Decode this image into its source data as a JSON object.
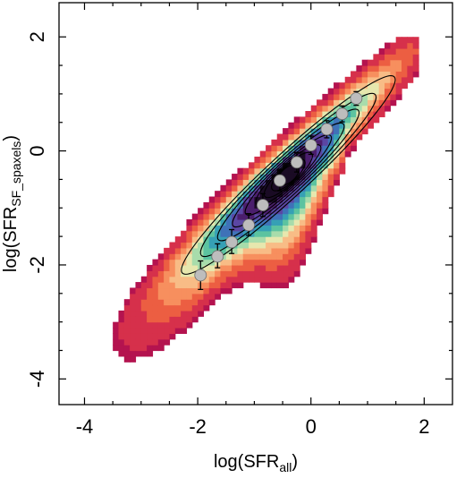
{
  "chart_data": {
    "type": "heatmap",
    "title": "",
    "xlabel": {
      "prefix": "log(SFR",
      "sub": "all",
      "suffix": ")"
    },
    "ylabel": {
      "prefix": "log(SFR",
      "sub": "SF_spaxels",
      "suffix": ")"
    },
    "xlim": [
      -4.45,
      2.5
    ],
    "ylim": [
      -4.45,
      2.6
    ],
    "x_ticks": [
      -4,
      -2,
      0,
      2
    ],
    "y_ticks": [
      -4,
      -2,
      0,
      2
    ],
    "x_tick_labels": [
      "-4",
      "-2",
      "0",
      "2"
    ],
    "y_tick_labels": [
      "-4",
      "-2",
      "0",
      "2"
    ],
    "grid": false,
    "colormap": [
      "#b4134f",
      "#d6304b",
      "#ec5e42",
      "#f78f5e",
      "#f8bc86",
      "#e7e7ae",
      "#a8dcab",
      "#5cc3a0",
      "#36a0b5",
      "#3f72b8",
      "#5b46a3",
      "#4b1e6d",
      "#1a0b24"
    ],
    "density_model": {
      "ridge_slope": 0.93,
      "ridge_intercept": 0.05,
      "core_x": [
        -1.0,
        0.0
      ],
      "core_peak_x": -0.55,
      "lower_tail_direction": -1
    },
    "contour_color": "#000000",
    "binned_medians": {
      "marker_color": "#bdbdbd",
      "errorbar_color": "#000000",
      "points": [
        {
          "x": -1.95,
          "y": -2.18,
          "err_low": 0.25,
          "err_high": 0.25
        },
        {
          "x": -1.65,
          "y": -1.85,
          "err_low": 0.2,
          "err_high": 0.22
        },
        {
          "x": -1.4,
          "y": -1.6,
          "err_low": 0.2,
          "err_high": 0.22
        },
        {
          "x": -1.1,
          "y": -1.3,
          "err_low": 0.18,
          "err_high": 0.2
        },
        {
          "x": -0.85,
          "y": -0.95,
          "err_low": 0.2,
          "err_high": 0.2
        },
        {
          "x": -0.55,
          "y": -0.52,
          "err_low": 0.18,
          "err_high": 0.18
        },
        {
          "x": -0.25,
          "y": -0.2,
          "err_low": 0.17,
          "err_high": 0.17
        },
        {
          "x": 0.0,
          "y": 0.1,
          "err_low": 0.16,
          "err_high": 0.16
        },
        {
          "x": 0.28,
          "y": 0.38,
          "err_low": 0.15,
          "err_high": 0.15
        },
        {
          "x": 0.55,
          "y": 0.65,
          "err_low": 0.14,
          "err_high": 0.14
        },
        {
          "x": 0.8,
          "y": 0.92,
          "err_low": 0.12,
          "err_high": 0.12
        }
      ]
    }
  }
}
